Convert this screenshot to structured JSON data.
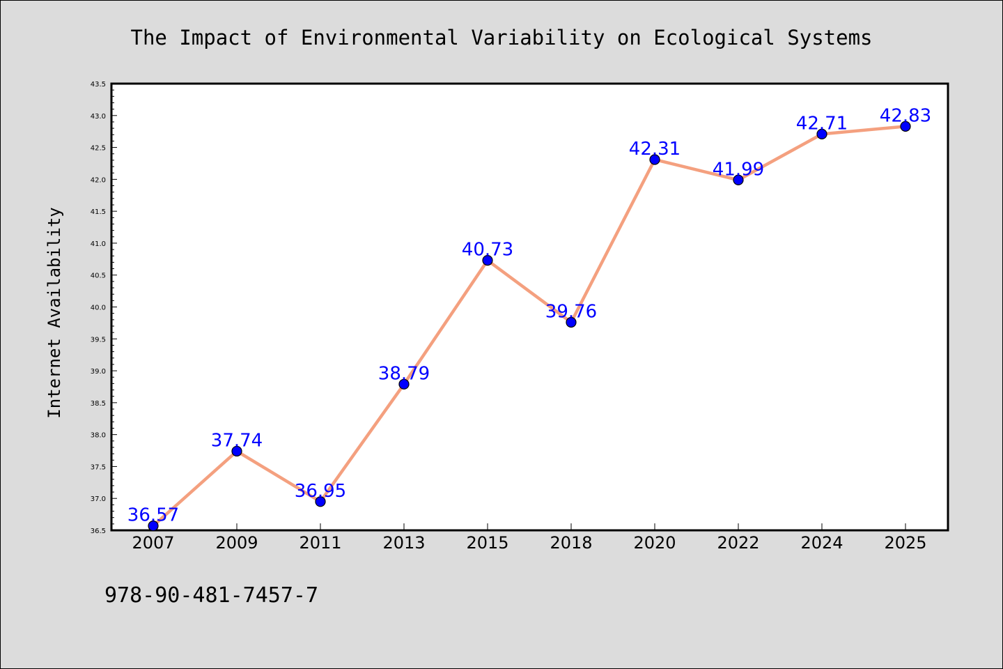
{
  "chart_data": {
    "type": "line",
    "title": "The Impact of Environmental Variability on Ecological Systems",
    "xlabel": "",
    "ylabel": "Internet Availability",
    "categories": [
      "2007",
      "2009",
      "2011",
      "2013",
      "2015",
      "2018",
      "2020",
      "2022",
      "2024",
      "2025"
    ],
    "values": [
      36.57,
      37.74,
      36.95,
      38.79,
      40.73,
      39.76,
      42.31,
      41.99,
      42.71,
      42.83
    ],
    "data_labels": [
      "36.57",
      "37.74",
      "36.95",
      "38.79",
      "40.73",
      "39.76",
      "42.31",
      "41.99",
      "42.71",
      "42.83"
    ],
    "ylim": [
      36.5,
      43.5
    ],
    "yticks": [
      "36.5",
      "37.0",
      "37.5",
      "38.0",
      "38.5",
      "39.0",
      "39.5",
      "40.0",
      "40.5",
      "41.0",
      "41.5",
      "42.0",
      "42.5",
      "43.0",
      "43.5"
    ],
    "grid": false,
    "legend": "none",
    "line_color": "#f4a07f",
    "marker_color": "#0000ff"
  },
  "footer": {
    "isbn": "978-90-481-7457-7"
  },
  "colors": {
    "background": "#dcdcdc",
    "plot_background": "#ffffff"
  }
}
